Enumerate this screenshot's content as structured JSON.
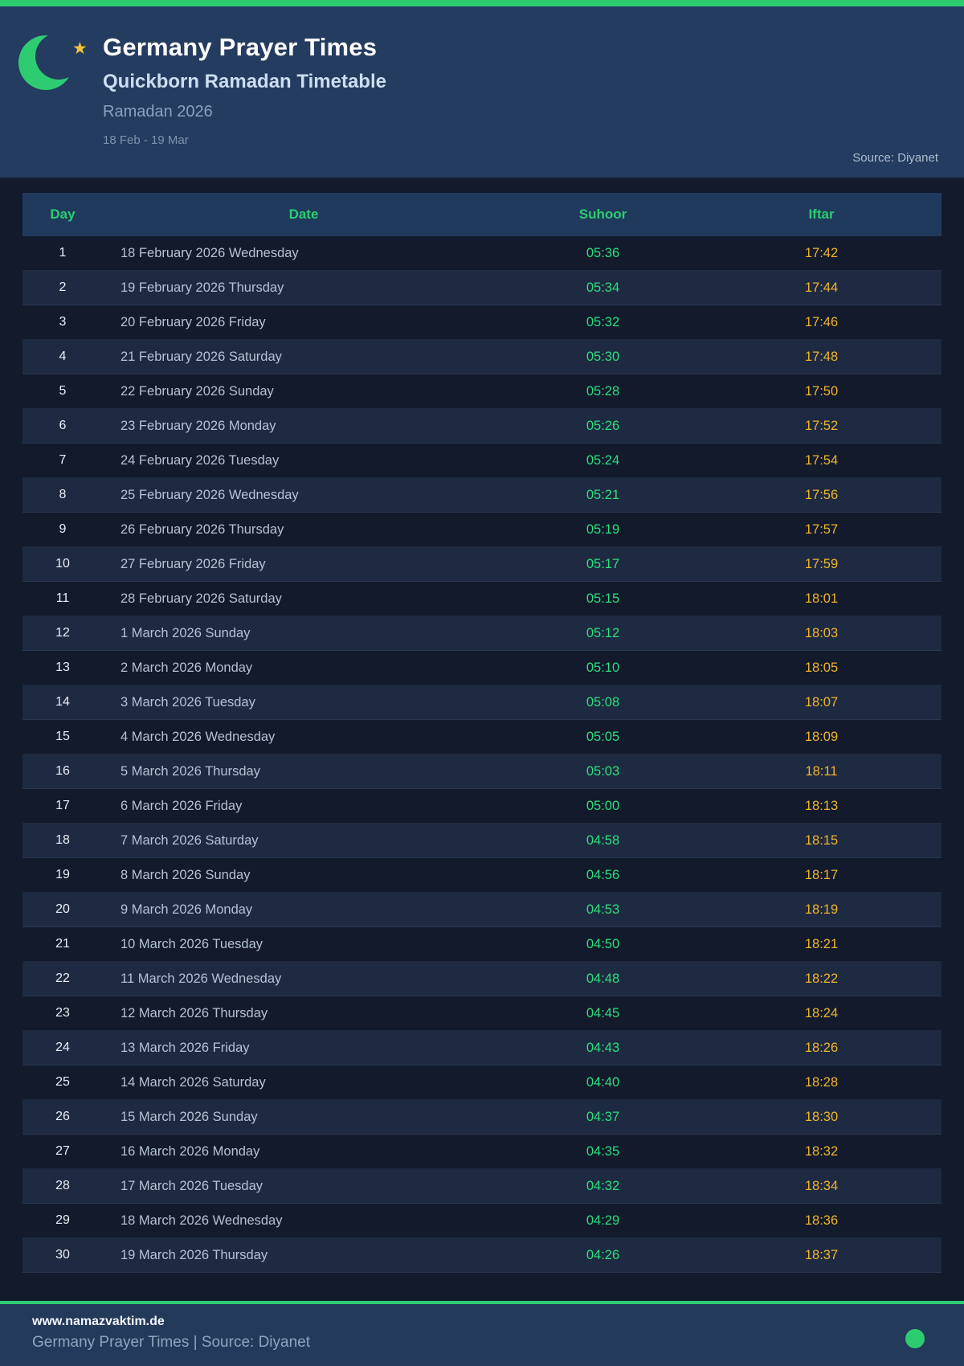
{
  "colors": {
    "accent_green": "#2ecc71",
    "suhoor_green": "#2ede7d",
    "iftar_amber": "#f0b42c",
    "header_band": "#243c5f",
    "footer_band": "#233a5b",
    "page_background": "#121a2c",
    "row_alt_background": "#1e2a41",
    "star_gold": "#f2c235"
  },
  "header": {
    "moon_icon": "crescent-moon-icon",
    "star_icon": "star-icon",
    "title": "Germany Prayer Times",
    "subtitle": "Quickborn Ramadan Timetable",
    "season": "Ramadan 2026",
    "date_range": "18 Feb - 19 Mar",
    "source": "Source: Diyanet"
  },
  "table": {
    "columns": {
      "day": "Day",
      "date": "Date",
      "suhoor": "Suhoor",
      "iftar": "Iftar"
    },
    "rows": [
      {
        "day": "1",
        "date": "18 February 2026 Wednesday",
        "suhoor": "05:36",
        "iftar": "17:42"
      },
      {
        "day": "2",
        "date": "19 February 2026 Thursday",
        "suhoor": "05:34",
        "iftar": "17:44"
      },
      {
        "day": "3",
        "date": "20 February 2026 Friday",
        "suhoor": "05:32",
        "iftar": "17:46"
      },
      {
        "day": "4",
        "date": "21 February 2026 Saturday",
        "suhoor": "05:30",
        "iftar": "17:48"
      },
      {
        "day": "5",
        "date": "22 February 2026 Sunday",
        "suhoor": "05:28",
        "iftar": "17:50"
      },
      {
        "day": "6",
        "date": "23 February 2026 Monday",
        "suhoor": "05:26",
        "iftar": "17:52"
      },
      {
        "day": "7",
        "date": "24 February 2026 Tuesday",
        "suhoor": "05:24",
        "iftar": "17:54"
      },
      {
        "day": "8",
        "date": "25 February 2026 Wednesday",
        "suhoor": "05:21",
        "iftar": "17:56"
      },
      {
        "day": "9",
        "date": "26 February 2026 Thursday",
        "suhoor": "05:19",
        "iftar": "17:57"
      },
      {
        "day": "10",
        "date": "27 February 2026 Friday",
        "suhoor": "05:17",
        "iftar": "17:59"
      },
      {
        "day": "11",
        "date": "28 February 2026 Saturday",
        "suhoor": "05:15",
        "iftar": "18:01"
      },
      {
        "day": "12",
        "date": "1 March 2026 Sunday",
        "suhoor": "05:12",
        "iftar": "18:03"
      },
      {
        "day": "13",
        "date": "2 March 2026 Monday",
        "suhoor": "05:10",
        "iftar": "18:05"
      },
      {
        "day": "14",
        "date": "3 March 2026 Tuesday",
        "suhoor": "05:08",
        "iftar": "18:07"
      },
      {
        "day": "15",
        "date": "4 March 2026 Wednesday",
        "suhoor": "05:05",
        "iftar": "18:09"
      },
      {
        "day": "16",
        "date": "5 March 2026 Thursday",
        "suhoor": "05:03",
        "iftar": "18:11"
      },
      {
        "day": "17",
        "date": "6 March 2026 Friday",
        "suhoor": "05:00",
        "iftar": "18:13"
      },
      {
        "day": "18",
        "date": "7 March 2026 Saturday",
        "suhoor": "04:58",
        "iftar": "18:15"
      },
      {
        "day": "19",
        "date": "8 March 2026 Sunday",
        "suhoor": "04:56",
        "iftar": "18:17"
      },
      {
        "day": "20",
        "date": "9 March 2026 Monday",
        "suhoor": "04:53",
        "iftar": "18:19"
      },
      {
        "day": "21",
        "date": "10 March 2026 Tuesday",
        "suhoor": "04:50",
        "iftar": "18:21"
      },
      {
        "day": "22",
        "date": "11 March 2026 Wednesday",
        "suhoor": "04:48",
        "iftar": "18:22"
      },
      {
        "day": "23",
        "date": "12 March 2026 Thursday",
        "suhoor": "04:45",
        "iftar": "18:24"
      },
      {
        "day": "24",
        "date": "13 March 2026 Friday",
        "suhoor": "04:43",
        "iftar": "18:26"
      },
      {
        "day": "25",
        "date": "14 March 2026 Saturday",
        "suhoor": "04:40",
        "iftar": "18:28"
      },
      {
        "day": "26",
        "date": "15 March 2026 Sunday",
        "suhoor": "04:37",
        "iftar": "18:30"
      },
      {
        "day": "27",
        "date": "16 March 2026 Monday",
        "suhoor": "04:35",
        "iftar": "18:32"
      },
      {
        "day": "28",
        "date": "17 March 2026 Tuesday",
        "suhoor": "04:32",
        "iftar": "18:34"
      },
      {
        "day": "29",
        "date": "18 March 2026 Wednesday",
        "suhoor": "04:29",
        "iftar": "18:36"
      },
      {
        "day": "30",
        "date": "19 March 2026 Thursday",
        "suhoor": "04:26",
        "iftar": "18:37"
      }
    ]
  },
  "footer": {
    "website": "www.namazvaktim.de",
    "tagline": "Germany Prayer Times | Source: Diyanet",
    "status_icon": "green-dot"
  }
}
